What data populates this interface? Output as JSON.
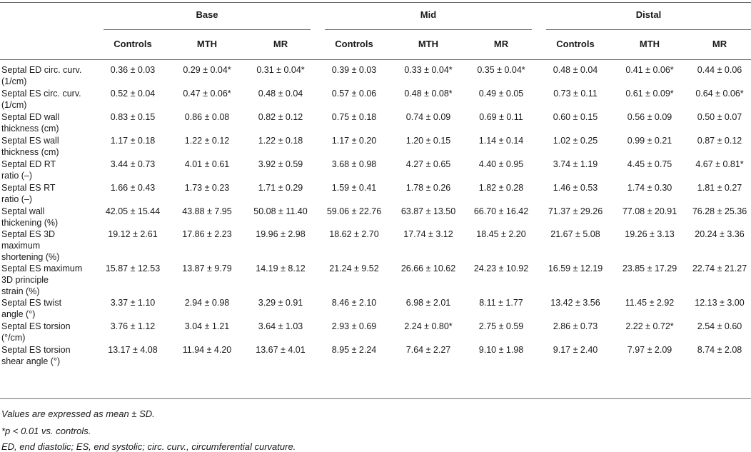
{
  "groups": [
    "Base",
    "Mid",
    "Distal"
  ],
  "subcolumns": [
    "Controls",
    "MTH",
    "MR"
  ],
  "rows": [
    {
      "label": [
        "Septal ED circ. curv.",
        "(1/cm)"
      ],
      "values": [
        "0.36 ± 0.03",
        "0.29 ± 0.04*",
        "0.31 ± 0.04*",
        "0.39 ± 0.03",
        "0.33 ± 0.04*",
        "0.35 ± 0.04*",
        "0.48 ± 0.04",
        "0.41 ± 0.06*",
        "0.44 ± 0.06"
      ]
    },
    {
      "label": [
        "Septal ES circ. curv.",
        "(1/cm)"
      ],
      "values": [
        "0.52 ± 0.04",
        "0.47 ± 0.06*",
        "0.48 ± 0.04",
        "0.57 ± 0.06",
        "0.48 ± 0.08*",
        "0.49 ± 0.05",
        "0.73 ± 0.11",
        "0.61 ± 0.09*",
        "0.64 ± 0.06*"
      ]
    },
    {
      "label": [
        "Septal ED wall",
        "thickness (cm)"
      ],
      "values": [
        "0.83 ± 0.15",
        "0.86 ± 0.08",
        "0.82 ± 0.12",
        "0.75 ± 0.18",
        "0.74 ± 0.09",
        "0.69 ± 0.11",
        "0.60 ± 0.15",
        "0.56 ± 0.09",
        "0.50 ± 0.07"
      ]
    },
    {
      "label": [
        "Septal ES wall",
        "thickness (cm)"
      ],
      "values": [
        "1.17 ± 0.18",
        "1.22 ± 0.12",
        "1.22 ± 0.18",
        "1.17 ± 0.20",
        "1.20 ± 0.15",
        "1.14 ± 0.14",
        "1.02 ± 0.25",
        "0.99 ± 0.21",
        "0.87 ± 0.12"
      ]
    },
    {
      "label": [
        "Septal ED RT",
        "ratio (–)"
      ],
      "values": [
        "3.44 ± 0.73",
        "4.01 ± 0.61",
        "3.92 ± 0.59",
        "3.68 ± 0.98",
        "4.27 ± 0.65",
        "4.40 ± 0.95",
        "3.74 ± 1.19",
        "4.45 ± 0.75",
        "4.67 ± 0.81*"
      ]
    },
    {
      "label": [
        "Septal ES RT",
        "ratio (–)"
      ],
      "values": [
        "1.66 ± 0.43",
        "1.73 ± 0.23",
        "1.71 ± 0.29",
        "1.59 ± 0.41",
        "1.78 ± 0.26",
        "1.82 ± 0.28",
        "1.46 ± 0.53",
        "1.74 ± 0.30",
        "1.81 ± 0.27"
      ]
    },
    {
      "label": [
        "Septal wall",
        "thickening (%)"
      ],
      "values": [
        "42.05 ± 15.44",
        "43.88 ± 7.95",
        "50.08 ± 11.40",
        "59.06 ± 22.76",
        "63.87 ± 13.50",
        "66.70 ± 16.42",
        "71.37 ± 29.26",
        "77.08 ± 20.91",
        "76.28 ± 25.36"
      ]
    },
    {
      "label": [
        "Septal ES 3D",
        "maximum",
        "shortening (%)"
      ],
      "values": [
        "19.12 ± 2.61",
        "17.86 ± 2.23",
        "19.96 ± 2.98",
        "18.62 ± 2.70",
        "17.74 ± 3.12",
        "18.45 ± 2.20",
        "21.67 ± 5.08",
        "19.26 ± 3.13",
        "20.24 ± 3.36"
      ]
    },
    {
      "label": [
        "Septal ES maximum",
        "3D principle",
        "strain (%)"
      ],
      "values": [
        "15.87 ± 12.53",
        "13.87 ± 9.79",
        "14.19 ± 8.12",
        "21.24 ± 9.52",
        "26.66 ± 10.62",
        "24.23 ± 10.92",
        "16.59 ± 12.19",
        "23.85 ± 17.29",
        "22.74 ± 21.27"
      ]
    },
    {
      "label": [
        "Septal ES twist",
        "angle (°)"
      ],
      "values": [
        "3.37 ± 1.10",
        "2.94 ± 0.98",
        "3.29 ± 0.91",
        "8.46 ± 2.10",
        "6.98 ± 2.01",
        "8.11 ± 1.77",
        "13.42 ± 3.56",
        "11.45 ± 2.92",
        "12.13 ± 3.00"
      ]
    },
    {
      "label": [
        "Septal ES torsion",
        "(°/cm)"
      ],
      "values": [
        "3.76 ± 1.12",
        "3.04 ± 1.21",
        "3.64 ± 1.03",
        "2.93 ± 0.69",
        "2.24 ± 0.80*",
        "2.75 ± 0.59",
        "2.86 ± 0.73",
        "2.22 ± 0.72*",
        "2.54 ± 0.60"
      ]
    },
    {
      "label": [
        "Septal ES torsion",
        "shear angle (°)"
      ],
      "values": [
        "13.17 ± 4.08",
        "11.94 ± 4.20",
        "13.67 ± 4.01",
        "8.95 ± 2.24",
        "7.64 ± 2.27",
        "9.10 ± 1.98",
        "9.17 ± 2.40",
        "7.97 ± 2.09",
        "8.74 ± 2.08"
      ]
    }
  ],
  "footnotes": [
    "Values are expressed as mean ± SD.",
    "*p < 0.01 vs. controls.",
    "ED, end diastolic; ES, end systolic; circ. curv., circumferential curvature."
  ]
}
